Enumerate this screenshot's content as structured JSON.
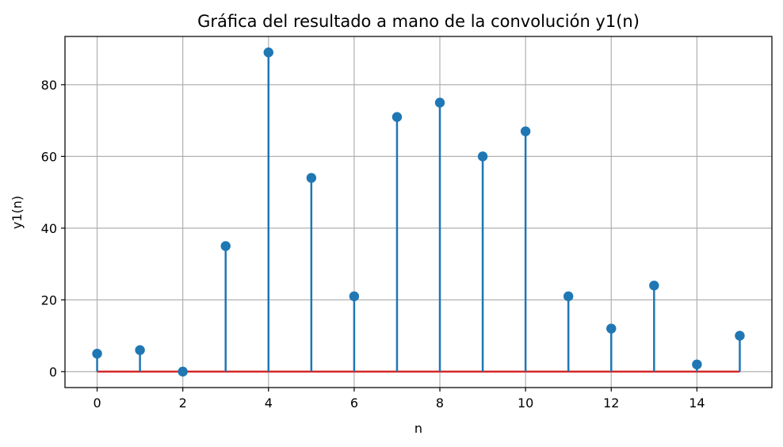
{
  "chart_data": {
    "type": "stem",
    "title": "Gráfica del resultado a mano de la convolución y1(n)",
    "xlabel": "n",
    "ylabel": "y1(n)",
    "x": [
      0,
      1,
      2,
      3,
      4,
      5,
      6,
      7,
      8,
      9,
      10,
      11,
      12,
      13,
      14,
      15
    ],
    "values": [
      5,
      6,
      0,
      35,
      89,
      54,
      21,
      71,
      75,
      60,
      67,
      21,
      12,
      24,
      2,
      10
    ],
    "xlim": [
      -0.75,
      15.75
    ],
    "ylim": [
      -4.45,
      93.45
    ],
    "xticks": [
      0,
      2,
      4,
      6,
      8,
      10,
      12,
      14
    ],
    "yticks": [
      0,
      20,
      40,
      60,
      80
    ],
    "grid": true,
    "colors": {
      "stem": "#1f77b4",
      "marker": "#1f77b4",
      "baseline": "#d62728",
      "grid": "#b0b0b0"
    }
  }
}
